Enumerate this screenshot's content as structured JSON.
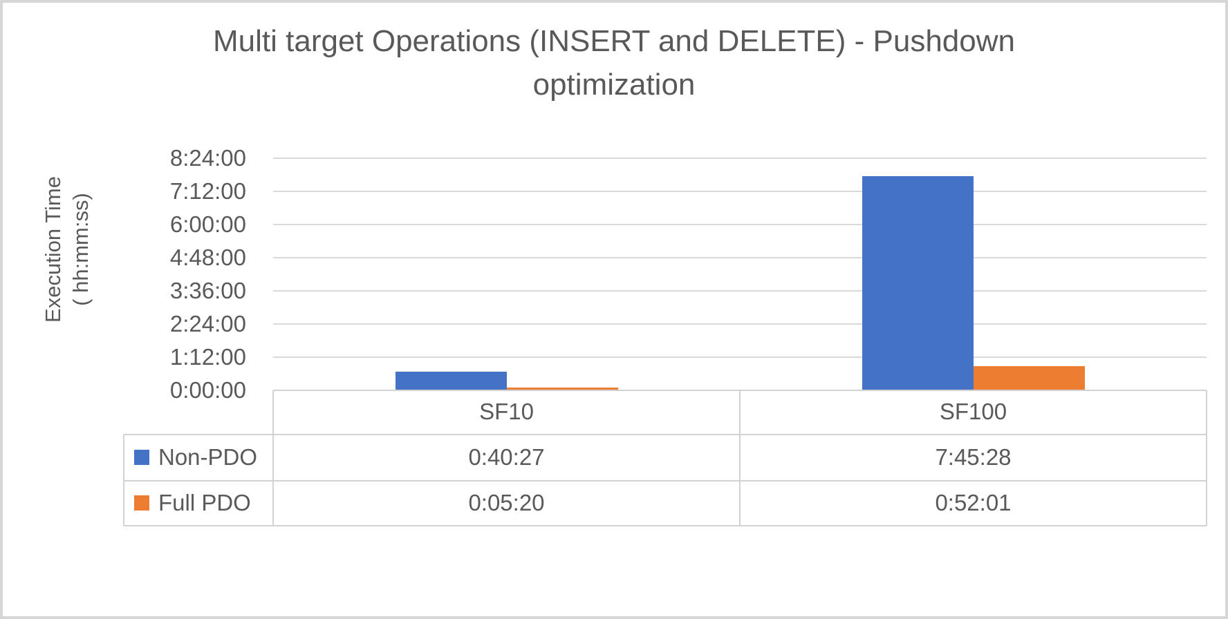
{
  "chart": {
    "title_lines": [
      "Multi target Operations (INSERT and DELETE) - Pushdown",
      "optimization"
    ],
    "y_axis_title_lines": [
      "Execution Time",
      "( hh:mm:ss)"
    ]
  },
  "chart_data": {
    "type": "bar",
    "title": "Multi target Operations (INSERT and DELETE) - Pushdown optimization",
    "ylabel": "Execution Time ( hh:mm:ss)",
    "xlabel": "",
    "categories": [
      "SF10",
      "SF100"
    ],
    "series": [
      {
        "name": "Non-PDO",
        "color": "#4472C4",
        "values": [
          "0:40:27",
          "7:45:28"
        ]
      },
      {
        "name": "Full PDO",
        "color": "#ED7D31",
        "values": [
          "0:05:20",
          "0:52:01"
        ]
      }
    ],
    "yticks": [
      "0:00:00",
      "1:12:00",
      "2:24:00",
      "3:36:00",
      "4:48:00",
      "6:00:00",
      "7:12:00",
      "8:24:00"
    ],
    "ylim": [
      "0:00:00",
      "8:24:00"
    ],
    "grid": true,
    "legend_position": "data-table-left",
    "data_table": true
  },
  "colors": {
    "text": "#595959",
    "grid": "#d9d9d9",
    "table_border": "#d2d2d2",
    "series_blue": "#4472C4",
    "series_orange": "#ED7D31"
  }
}
